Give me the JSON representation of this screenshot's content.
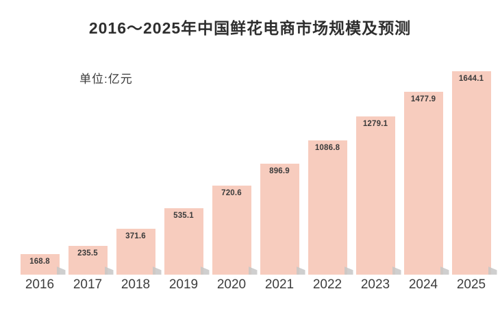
{
  "chart": {
    "title": "2016～2025年中国鲜花电商市场规模及预测",
    "unit_label": "单位:亿元"
  },
  "chart_data": {
    "type": "bar",
    "title": "2016～2025年中国鲜花电商市场规模及预测",
    "unit": "亿元",
    "categories": [
      "2016",
      "2017",
      "2018",
      "2019",
      "2020",
      "2021",
      "2022",
      "2023",
      "2024",
      "2025"
    ],
    "values": [
      168.8,
      235.5,
      371.6,
      535.1,
      720.6,
      896.9,
      1086.8,
      1279.1,
      1477.9,
      1644.1
    ],
    "data_labels": [
      "168.8",
      "235.5",
      "371.6",
      "535.1",
      "720.6",
      "896.9",
      "1086.8",
      "1279.1",
      "1477.9",
      "1644.1"
    ],
    "xlabel": "",
    "ylabel": "",
    "ylim": [
      0,
      1700
    ],
    "grid": false,
    "legend": false,
    "data_labels_position": "inside-top",
    "bar_color": "#f7ccbe",
    "bar_shadow_color": "#c7c7c7",
    "value_label_color": "#3b3b3b",
    "axis_label_color": "#3d3d3d",
    "title_color": "#2e2e2e",
    "background_color": "#ffffff"
  }
}
